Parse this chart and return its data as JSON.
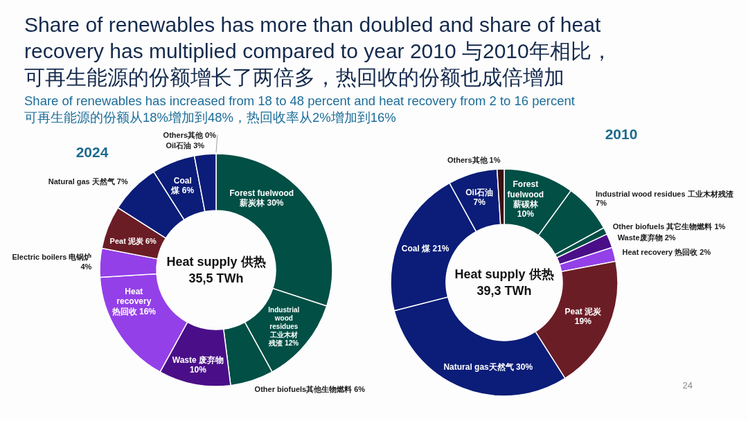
{
  "chart_data": [
    {
      "type": "other",
      "title": "Share of renewables has more than doubled and share of heat recovery has multiplied compared to year 2010 与2010年相比，可再生能源的份额增长了两倍多，热回收的份额也成倍增加",
      "subtitle": "Share of renewables has increased from 18 to 48 percent and heat recovery from 2 to 16 percent\n可再生能源的份额从18%增加到48%，热回收率从2%增加到16%",
      "annotations": [
        "24"
      ]
    },
    {
      "type": "donut",
      "title": "2024",
      "categories": [
        "Forest fuelwood薪炭林",
        "Industrial wood residues工业木材残渣",
        "Other biofuels其他生物燃料",
        "Waste 废弃物",
        "Heat recovery 热回收",
        "Electric boilers 电锅炉",
        "Peat 泥炭",
        "Natural gas 天然气",
        "Coal煤",
        "Oil石油",
        "Others其他"
      ],
      "values": [
        30,
        12,
        6,
        10,
        16,
        4,
        6,
        7,
        6,
        3,
        0
      ],
      "value_labels": [
        "30%",
        "12%",
        "6%",
        "10%",
        "16%",
        "4%",
        "6%",
        "7%",
        "6%",
        "3%",
        "0%"
      ],
      "colors": [
        "#014f45",
        "#014f45",
        "#014f45",
        "#4a0f88",
        "#9440e8",
        "#9440e8",
        "#6b1d26",
        "#0b1d78",
        "#0b1d78",
        "#0b1d78",
        "#3a1010"
      ],
      "annotations": [
        "Heat supply 供热",
        "35,5 TWh"
      ]
    },
    {
      "type": "donut",
      "title": "2010",
      "categories": [
        "Forest fuelwood 薪碳林",
        "Industrial wood residues 工业木材残渣",
        "Other biofuels 其它生物燃料",
        "Waste废弃物",
        "Heat recovery 热回收",
        "Peat 泥炭",
        "Natural gas天然气",
        "Coal 煤",
        "Oil石油",
        "Others其他"
      ],
      "values": [
        10,
        7,
        1,
        2,
        2,
        19,
        30,
        21,
        7,
        1
      ],
      "value_labels": [
        "10%",
        "7%",
        "1%",
        "2%",
        "2%",
        "19%",
        "30%",
        "21%",
        "7%",
        "1%"
      ],
      "colors": [
        "#014f45",
        "#014f45",
        "#014f45",
        "#4a0f88",
        "#9440e8",
        "#6b1d26",
        "#0b1d78",
        "#0b1d78",
        "#0b1d78",
        "#3a1010"
      ],
      "annotations": [
        "Heat supply 供热",
        "39,3 TWh"
      ]
    }
  ]
}
